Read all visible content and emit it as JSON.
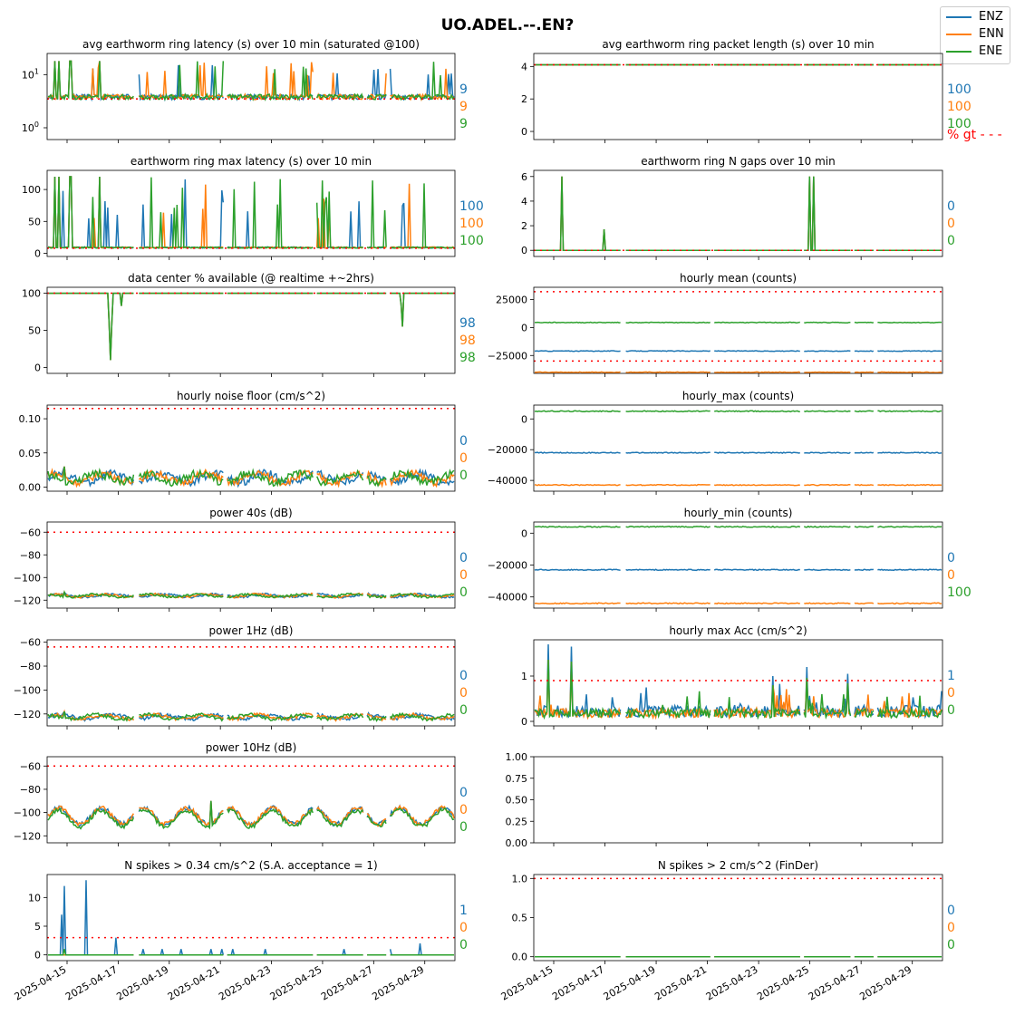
{
  "figure": {
    "title": "UO.ADEL.--.EN?",
    "legend": [
      {
        "label": "ENZ",
        "color": "#1f77b4"
      },
      {
        "label": "ENN",
        "color": "#ff7f0e"
      },
      {
        "label": "ENE",
        "color": "#2ca02c"
      }
    ],
    "legend_position": "top-right",
    "threshold_color": "#ff0000",
    "x_ticks": [
      "2025-04-15",
      "2025-04-17",
      "2025-04-19",
      "2025-04-21",
      "2025-04-23",
      "2025-04-25",
      "2025-04-27",
      "2025-04-29"
    ]
  },
  "chart_data": [
    {
      "id": "avg-latency",
      "type": "line",
      "title": "avg earthworm ring latency (s)   over 10 min (saturated @100)",
      "yscale": "log",
      "ylim": [
        0.6,
        25
      ],
      "yticks": [
        {
          "v": 1,
          "base": "10",
          "exp": "0"
        },
        {
          "v": 10,
          "base": "10",
          "exp": "1"
        }
      ],
      "threshold": 3.5,
      "pattern": "spikes",
      "base": 3.4,
      "peak": 18,
      "side_values": [
        "9",
        "9",
        "9"
      ],
      "extra_label": ""
    },
    {
      "id": "avg-packet-length",
      "type": "line",
      "title": "avg earthworm ring packet length (s)   over 10 min",
      "ylim": [
        -0.5,
        4.8
      ],
      "yticks": [
        0,
        2,
        4
      ],
      "threshold": 4.1,
      "pattern": "flat",
      "base": 4.1,
      "peak": 4.1,
      "side_values": [
        "100",
        "100",
        "100"
      ],
      "extra_label": "% gt - - -"
    },
    {
      "id": "max-latency",
      "type": "line",
      "title": "earthworm ring max latency (s)   over 10 min",
      "ylim": [
        -5,
        130
      ],
      "yticks": [
        0,
        50,
        100
      ],
      "threshold": 8,
      "pattern": "spikes",
      "base": 8,
      "peak": 120,
      "side_values": [
        "100",
        "100",
        "100"
      ],
      "extra_label": ""
    },
    {
      "id": "n-gaps",
      "type": "line",
      "title": "earthworm ring N gaps   over 10 min",
      "ylim": [
        -0.5,
        6.5
      ],
      "yticks": [
        0,
        2,
        4,
        6
      ],
      "threshold": 0,
      "pattern": "gaps",
      "base": 0,
      "peak": 6,
      "side_values": [
        "0",
        "0",
        "0"
      ],
      "extra_label": ""
    },
    {
      "id": "pct-available",
      "type": "line",
      "title": "data center % available (@ realtime +~2hrs)",
      "ylim": [
        -8,
        108
      ],
      "yticks": [
        0,
        50,
        100
      ],
      "threshold": 100,
      "pattern": "available",
      "base": 100,
      "peak": 100,
      "side_values": [
        "98",
        "98",
        "98"
      ],
      "extra_label": ""
    },
    {
      "id": "hourly-mean",
      "type": "line",
      "title": "hourly mean (counts)",
      "ylim": [
        -41000,
        36000
      ],
      "yticks": [
        -25000,
        0,
        25000
      ],
      "thresholds": [
        32000,
        -30000
      ],
      "pattern": "levels",
      "levels": [
        -21000,
        -40000,
        4500
      ],
      "side_values": [
        "",
        "",
        ""
      ],
      "extra_label": ""
    },
    {
      "id": "noise-floor",
      "type": "line",
      "title": "hourly noise floor (cm/s^2)",
      "ylim": [
        -0.006,
        0.12
      ],
      "yticks": [
        0.0,
        0.05,
        0.1
      ],
      "threshold": 0.115,
      "pattern": "noise",
      "base": 0.008,
      "peak": 0.03,
      "side_values": [
        "0",
        "0",
        "0"
      ],
      "extra_label": ""
    },
    {
      "id": "hourly-max",
      "type": "line",
      "title": "hourly_max (counts)",
      "ylim": [
        -47000,
        9000
      ],
      "yticks": [
        -40000,
        -20000,
        0
      ],
      "pattern": "levels",
      "levels": [
        -22000,
        -43000,
        5000
      ],
      "side_values": [
        "",
        "",
        ""
      ],
      "extra_label": ""
    },
    {
      "id": "power-40s",
      "type": "line",
      "title": "power 40s (dB)",
      "ylim": [
        -127,
        -51
      ],
      "yticks": [
        -120,
        -100,
        -80,
        -60
      ],
      "threshold": -60,
      "pattern": "noise",
      "base": -117,
      "peak": -113,
      "side_values": [
        "0",
        "0",
        "0"
      ],
      "extra_label": ""
    },
    {
      "id": "hourly-min",
      "type": "line",
      "title": "hourly_min (counts)",
      "ylim": [
        -47000,
        7000
      ],
      "yticks": [
        -40000,
        -20000,
        0
      ],
      "pattern": "levels",
      "levels": [
        -23000,
        -44000,
        4000
      ],
      "side_values": [
        "0",
        "0",
        "100"
      ],
      "extra_label": ""
    },
    {
      "id": "power-1hz",
      "type": "line",
      "title": "power 1Hz (dB)",
      "ylim": [
        -130,
        -58
      ],
      "yticks": [
        -120,
        -100,
        -80,
        -60
      ],
      "threshold": -64,
      "pattern": "noise",
      "base": -124,
      "peak": -118,
      "side_values": [
        "0",
        "0",
        "0"
      ],
      "extra_label": ""
    },
    {
      "id": "hourly-max-acc",
      "type": "line",
      "title": "hourly max Acc (cm/s^2)",
      "ylim": [
        -0.1,
        1.8
      ],
      "yticks": [
        0,
        1
      ],
      "threshold": 0.9,
      "pattern": "acc",
      "base": 0.1,
      "peak": 1.7,
      "side_values": [
        "1",
        "0",
        "0"
      ],
      "extra_label": ""
    },
    {
      "id": "power-10hz",
      "type": "line",
      "title": "power 10Hz (dB)",
      "ylim": [
        -126,
        -52
      ],
      "yticks": [
        -120,
        -100,
        -80,
        -60
      ],
      "threshold": -60,
      "pattern": "wave",
      "base": -103,
      "peak": -90,
      "side_values": [
        "0",
        "0",
        "0"
      ],
      "extra_label": ""
    },
    {
      "id": "empty",
      "type": "line",
      "title": "",
      "ylim": [
        0,
        1
      ],
      "yticks": [
        0.0,
        0.25,
        0.5,
        0.75,
        1.0
      ],
      "pattern": "none",
      "side_values": [
        "",
        "",
        ""
      ],
      "extra_label": ""
    },
    {
      "id": "n-spikes-034",
      "type": "line",
      "title": "N spikes > 0.34 cm/s^2 (S.A. acceptance = 1)",
      "ylim": [
        -1,
        14
      ],
      "yticks": [
        0,
        5,
        10
      ],
      "threshold": 3,
      "pattern": "nspikes",
      "base": 0,
      "peak": 13,
      "side_values": [
        "1",
        "0",
        "0"
      ],
      "extra_label": ""
    },
    {
      "id": "n-spikes-2",
      "type": "line",
      "title": "N spikes > 2 cm/s^2 (FinDer)",
      "ylim": [
        -0.05,
        1.05
      ],
      "yticks": [
        0.0,
        0.5,
        1.0
      ],
      "threshold": 1,
      "pattern": "flat",
      "base": 0,
      "peak": 0,
      "side_values": [
        "0",
        "0",
        "0"
      ],
      "extra_label": ""
    }
  ]
}
